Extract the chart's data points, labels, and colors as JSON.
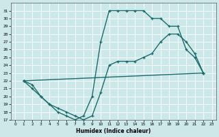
{
  "xlabel": "Humidex (Indice chaleur)",
  "bg_color": "#cde8e8",
  "line_color": "#1a6b6b",
  "grid_color": "#ffffff",
  "xlim": [
    -0.5,
    23.5
  ],
  "ylim": [
    17,
    32
  ],
  "xticks": [
    0,
    1,
    2,
    3,
    4,
    5,
    6,
    7,
    8,
    9,
    10,
    11,
    12,
    13,
    14,
    15,
    16,
    17,
    18,
    19,
    20,
    21,
    22,
    23
  ],
  "yticks": [
    17,
    18,
    19,
    20,
    21,
    22,
    23,
    24,
    25,
    26,
    27,
    28,
    29,
    30,
    31
  ],
  "curve1_x": [
    1,
    2,
    3,
    4,
    5,
    6,
    7,
    8,
    9,
    10,
    11,
    12,
    13,
    14,
    15,
    16,
    17,
    18,
    19,
    20,
    21,
    22
  ],
  "curve1_y": [
    22,
    21,
    20,
    19,
    18,
    17.5,
    17,
    17.5,
    20,
    27,
    31,
    31,
    31,
    31,
    31,
    30,
    30,
    29,
    29,
    26,
    25,
    23
  ],
  "curve2_x": [
    1,
    2,
    3,
    4,
    5,
    6,
    7,
    8,
    9,
    10,
    11,
    12,
    13,
    14,
    15,
    16,
    17,
    18,
    19,
    20,
    21,
    22
  ],
  "curve2_y": [
    22,
    21.5,
    20,
    19,
    18.5,
    18,
    17.5,
    17,
    17.5,
    20.5,
    24,
    24.5,
    24.5,
    24.5,
    25,
    25.5,
    27,
    28,
    28,
    27,
    25.5,
    23
  ],
  "curve3_x": [
    1,
    22
  ],
  "curve3_y": [
    22,
    23
  ],
  "marker": "+",
  "markersize": 3.5,
  "linewidth": 1.0
}
